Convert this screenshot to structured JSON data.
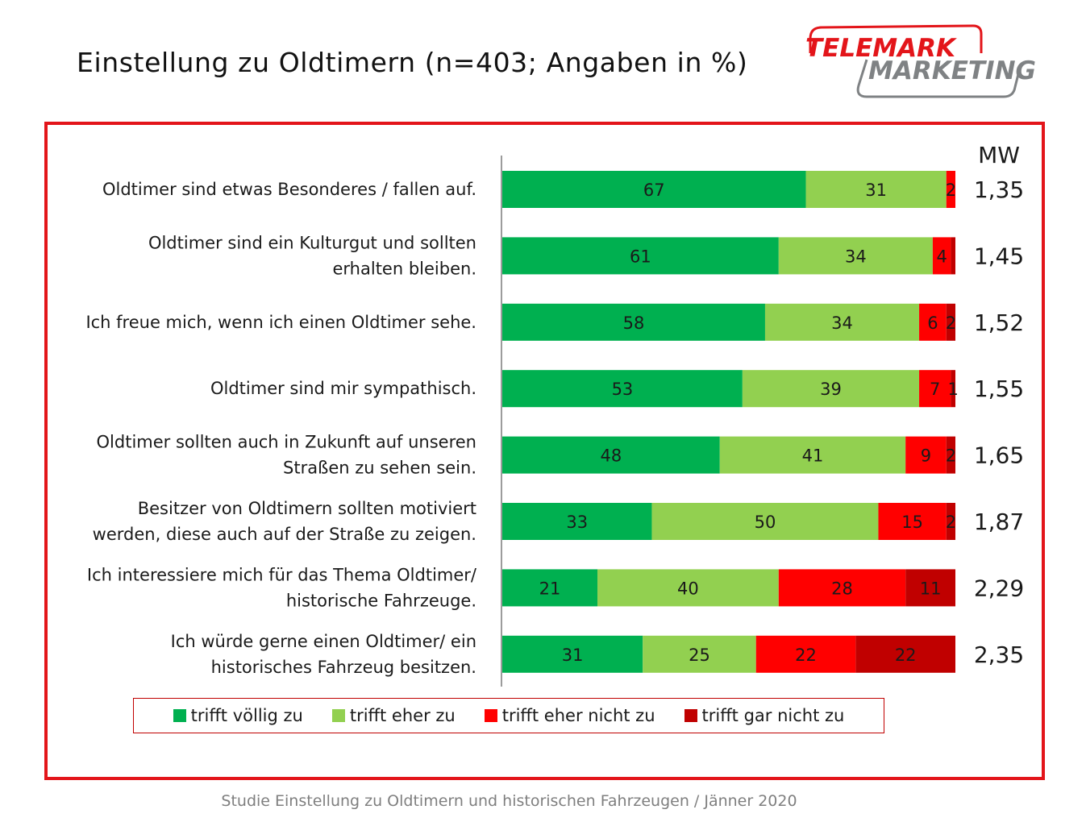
{
  "title": "Einstellung zu Oldtimern (n=403; Angaben in %)",
  "logo": {
    "line1": "TELEMARK",
    "line2": "MARKETING",
    "color_red": "#e3151a",
    "color_gray": "#7f8284"
  },
  "footer": "Studie Einstellung zu Oldtimern und historischen Fahrzeugen / Jänner 2020",
  "colors": {
    "frame": "#e3151a",
    "axis": "#595959"
  },
  "chart_data": {
    "type": "bar",
    "orientation": "horizontal",
    "stacked": true,
    "categories": [
      [
        "Oldtimer sind etwas Besonderes / fallen auf."
      ],
      [
        "Oldtimer sind ein Kulturgut und sollten",
        "erhalten bleiben."
      ],
      [
        "Ich freue mich, wenn ich einen Oldtimer sehe."
      ],
      [
        "Oldtimer sind mir sympathisch."
      ],
      [
        "Oldtimer sollten auch in Zukunft auf unseren",
        "Straßen zu sehen sein."
      ],
      [
        "Besitzer von Oldtimern sollten motiviert",
        "werden, diese auch auf der Straße zu zeigen."
      ],
      [
        "Ich interessiere mich für das Thema Oldtimer/",
        "historische Fahrzeuge."
      ],
      [
        "Ich würde gerne einen Oldtimer/ ein",
        "historisches Fahrzeug besitzen."
      ]
    ],
    "series": [
      {
        "name": "trifft völlig zu",
        "color": "#00b050",
        "values": [
          67,
          61,
          58,
          53,
          48,
          33,
          21,
          31
        ]
      },
      {
        "name": "trifft eher zu",
        "color": "#92d050",
        "values": [
          31,
          34,
          34,
          39,
          41,
          50,
          40,
          25
        ]
      },
      {
        "name": "trifft eher nicht zu",
        "color": "#ff0000",
        "values": [
          2,
          4,
          6,
          7,
          9,
          15,
          28,
          22
        ]
      },
      {
        "name": "trifft gar nicht zu",
        "color": "#c00000",
        "values": [
          0,
          1,
          2,
          1,
          2,
          2,
          11,
          22
        ]
      }
    ],
    "data_labels": [
      [
        "67",
        "31",
        "2",
        ""
      ],
      [
        "61",
        "34",
        "4",
        ""
      ],
      [
        "58",
        "34",
        "6",
        "2"
      ],
      [
        "53",
        "39",
        "7",
        "1"
      ],
      [
        "48",
        "41",
        "9",
        "2"
      ],
      [
        "33",
        "50",
        "15",
        "2"
      ],
      [
        "21",
        "40",
        "28",
        "11"
      ],
      [
        "31",
        "25",
        "22",
        "22"
      ]
    ],
    "mw_header": "MW",
    "mw": [
      "1,35",
      "1,45",
      "1,52",
      "1,55",
      "1,65",
      "1,87",
      "2,29",
      "2,35"
    ],
    "xlim": [
      0,
      100
    ],
    "legend_position": "bottom",
    "grid": false
  }
}
